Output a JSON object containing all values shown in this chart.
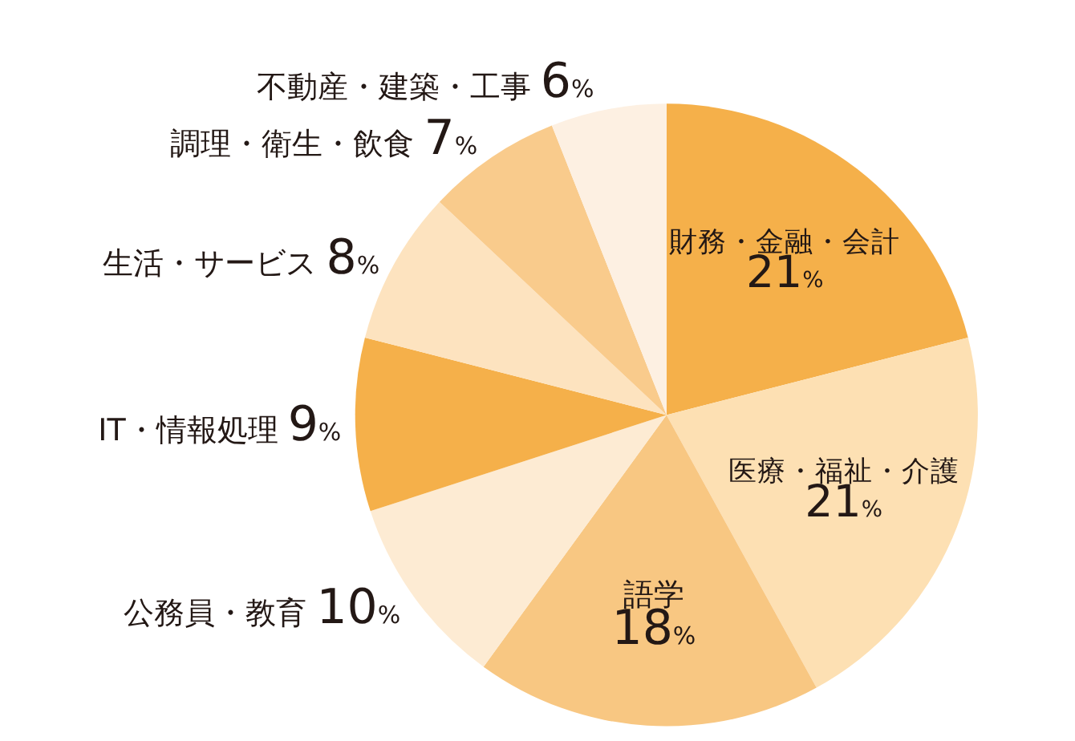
{
  "chart_data": {
    "type": "pie",
    "categories": [
      "財務・金融・会計",
      "医療・福祉・介護",
      "語学",
      "公務員・教育",
      "IT・情報処理",
      "生活・サービス",
      "調理・衛生・飲食",
      "不動産・建築・工事"
    ],
    "values": [
      21,
      21,
      18,
      10,
      9,
      8,
      7,
      6
    ],
    "colors": [
      "#f5b04a",
      "#fde0b3",
      "#f8c782",
      "#fdebd3",
      "#f5b04a",
      "#fde3bf",
      "#f9cb8c",
      "#fdf0e2"
    ],
    "value_labels": [
      "21%",
      "21%",
      "18%",
      "10%",
      "9%",
      "8%",
      "7%",
      "6%"
    ],
    "legend": false
  }
}
